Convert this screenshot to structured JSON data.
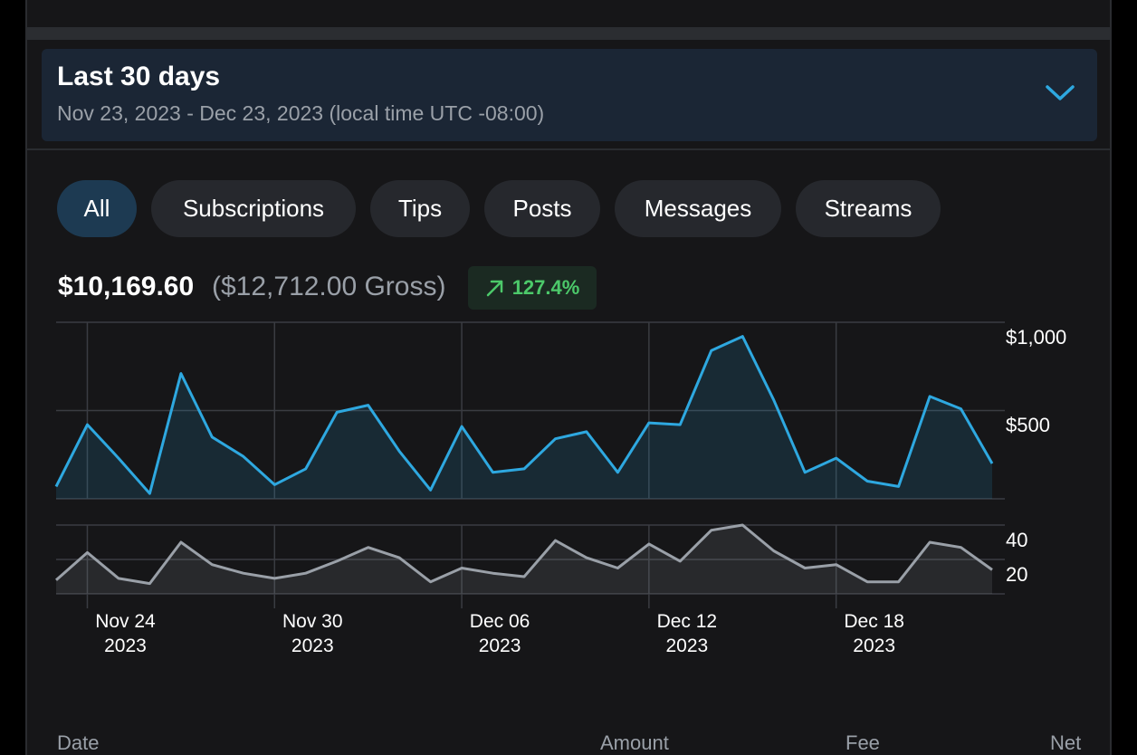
{
  "date_range": {
    "title": "Last 30 days",
    "subtitle": "Nov 23, 2023 - Dec 23, 2023 (local time UTC -08:00)",
    "chevron_icon": "chevron-down-icon"
  },
  "filters": [
    {
      "label": "All",
      "active": true
    },
    {
      "label": "Subscriptions",
      "active": false
    },
    {
      "label": "Tips",
      "active": false
    },
    {
      "label": "Posts",
      "active": false
    },
    {
      "label": "Messages",
      "active": false
    },
    {
      "label": "Streams",
      "active": false
    }
  ],
  "summary": {
    "net_total": "$10,169.60",
    "gross_total": "($12,712.00 Gross)",
    "change_percent": "127.4%",
    "change_icon": "arrow-up-right-icon"
  },
  "colors": {
    "accent": "#2ea8e0",
    "count_line": "#9aa0a8",
    "positive": "#4cc96a",
    "active_chip": "#1d3a52"
  },
  "table_headers": {
    "date": "Date",
    "amount": "Amount",
    "fee": "Fee",
    "net": "Net"
  },
  "chart_data": [
    {
      "type": "area",
      "x": [
        "2023-11-23",
        "2023-11-24",
        "2023-11-25",
        "2023-11-26",
        "2023-11-27",
        "2023-11-28",
        "2023-11-29",
        "2023-11-30",
        "2023-12-01",
        "2023-12-02",
        "2023-12-03",
        "2023-12-04",
        "2023-12-05",
        "2023-12-06",
        "2023-12-07",
        "2023-12-08",
        "2023-12-09",
        "2023-12-10",
        "2023-12-11",
        "2023-12-12",
        "2023-12-13",
        "2023-12-14",
        "2023-12-15",
        "2023-12-16",
        "2023-12-17",
        "2023-12-18",
        "2023-12-19",
        "2023-12-20",
        "2023-12-21",
        "2023-12-22",
        "2023-12-23"
      ],
      "series": [
        {
          "values": [
            70,
            420,
            230,
            30,
            710,
            350,
            240,
            80,
            170,
            490,
            530,
            270,
            50,
            410,
            150,
            170,
            340,
            380,
            150,
            430,
            420,
            840,
            920,
            560,
            150,
            230,
            100,
            70,
            580,
            510,
            200
          ]
        }
      ],
      "y_tick_labels": [
        "$1,000",
        "$500"
      ],
      "ylim": [
        0,
        1000
      ],
      "grid": true
    },
    {
      "type": "area",
      "x": [
        "2023-11-23",
        "2023-11-24",
        "2023-11-25",
        "2023-11-26",
        "2023-11-27",
        "2023-11-28",
        "2023-11-29",
        "2023-11-30",
        "2023-12-01",
        "2023-12-02",
        "2023-12-03",
        "2023-12-04",
        "2023-12-05",
        "2023-12-06",
        "2023-12-07",
        "2023-12-08",
        "2023-12-09",
        "2023-12-10",
        "2023-12-11",
        "2023-12-12",
        "2023-12-13",
        "2023-12-14",
        "2023-12-15",
        "2023-12-16",
        "2023-12-17",
        "2023-12-18",
        "2023-12-19",
        "2023-12-20",
        "2023-12-21",
        "2023-12-22",
        "2023-12-23"
      ],
      "series": [
        {
          "values": [
            8,
            24,
            9,
            6,
            30,
            17,
            12,
            9,
            12,
            19,
            27,
            21,
            7,
            15,
            12,
            10,
            31,
            21,
            15,
            29,
            19,
            37,
            40,
            25,
            15,
            17,
            7,
            7,
            30,
            27,
            14
          ]
        }
      ],
      "x_tick_labels": [
        {
          "label": "Nov 24",
          "year": "2023",
          "date": "2023-11-24"
        },
        {
          "label": "Nov 30",
          "year": "2023",
          "date": "2023-11-30"
        },
        {
          "label": "Dec 06",
          "year": "2023",
          "date": "2023-12-06"
        },
        {
          "label": "Dec 12",
          "year": "2023",
          "date": "2023-12-12"
        },
        {
          "label": "Dec 18",
          "year": "2023",
          "date": "2023-12-18"
        }
      ],
      "y_tick_labels": [
        "40",
        "20"
      ],
      "ylim": [
        0,
        40
      ],
      "grid": true
    }
  ]
}
